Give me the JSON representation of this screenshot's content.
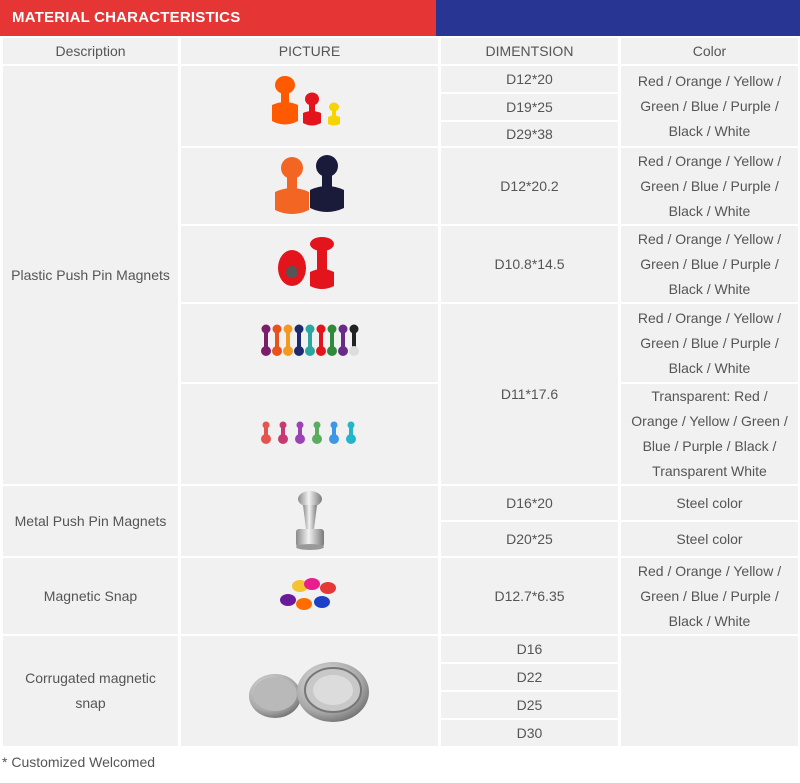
{
  "header": {
    "title": "MATERIAL CHARACTERISTICS"
  },
  "columns": {
    "description": "Description",
    "picture": "PICTURE",
    "dimension": "DIMENTSION",
    "color": "Color"
  },
  "rows": {
    "plastic": {
      "description": "Plastic Push Pin Magnets",
      "dims": [
        "D12*20",
        "D19*25",
        "D29*38",
        "D12*20.2",
        "D10.8*14.5",
        "D11*17.6"
      ],
      "colors": [
        "Red / Orange / Yellow / Green / Blue / Purple / Black / White",
        "Red / Orange / Yellow / Green / Blue / Purple / Black / White",
        "Red / Orange / Yellow / Green / Blue / Purple / Black / White",
        "Red / Orange / Yellow / Green / Blue / Purple / Black / White",
        "Transparent:   Red / Orange / Yellow / Green / Blue / Purple / Black / Transparent   White"
      ]
    },
    "metal": {
      "description": "Metal Push Pin Magnets",
      "dims": [
        "D16*20",
        "D20*25"
      ],
      "colors": [
        "Steel color",
        "Steel color"
      ]
    },
    "snap": {
      "description": "Magnetic Snap",
      "dims": [
        "D12.7*6.35"
      ],
      "colors": [
        "Red / Orange / Yellow / Green / Blue / Purple / Black / White"
      ]
    },
    "corrugated": {
      "description": "Corrugated magnetic snap",
      "dims": [
        "D16",
        "D22",
        "D25",
        "D30"
      ]
    }
  },
  "footnote": "* Customized Welcomed",
  "colors": {
    "header_red": "#e53535",
    "header_blue": "#283593",
    "cell_bg": "#f1f1f1"
  }
}
